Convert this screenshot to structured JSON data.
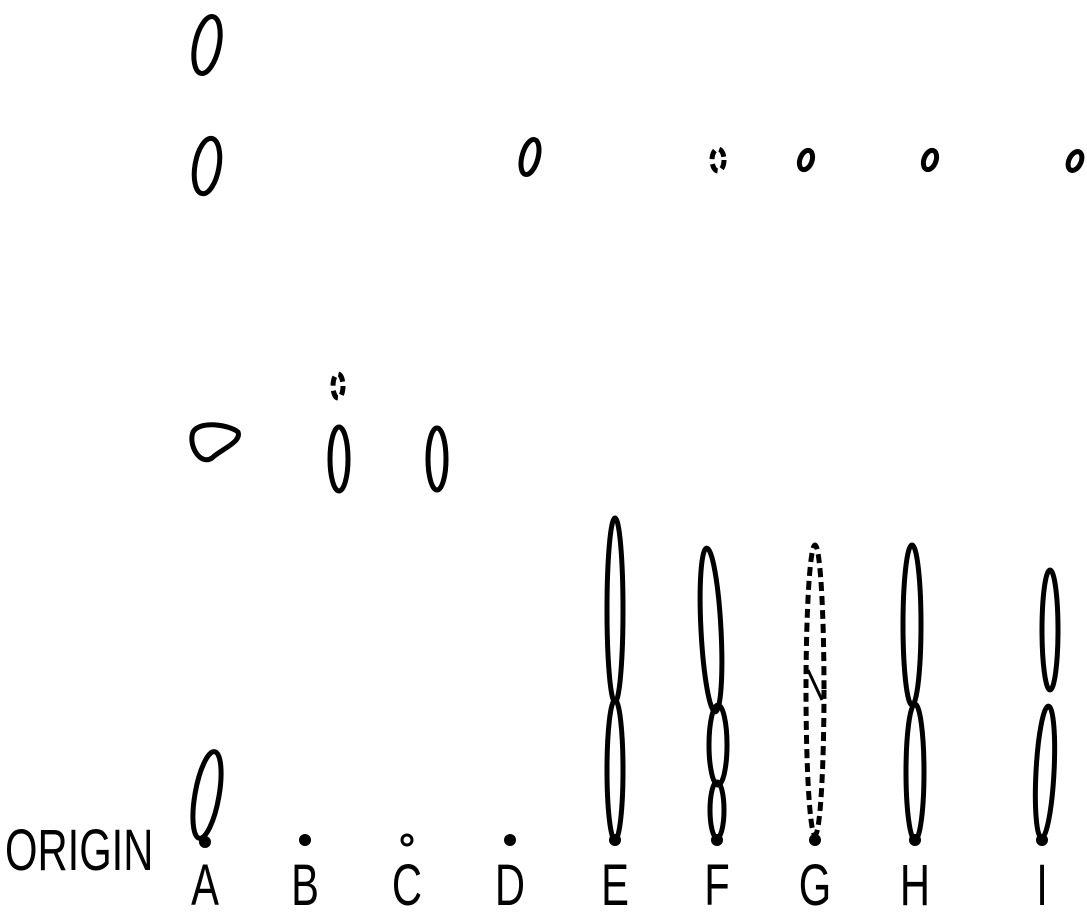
{
  "origin_label": "ORIGIN",
  "lanes": [
    {
      "label": "A"
    },
    {
      "label": "B"
    },
    {
      "label": "C"
    },
    {
      "label": "D"
    },
    {
      "label": "E"
    },
    {
      "label": "F"
    },
    {
      "label": "G"
    },
    {
      "label": "H"
    },
    {
      "label": "I"
    }
  ]
}
